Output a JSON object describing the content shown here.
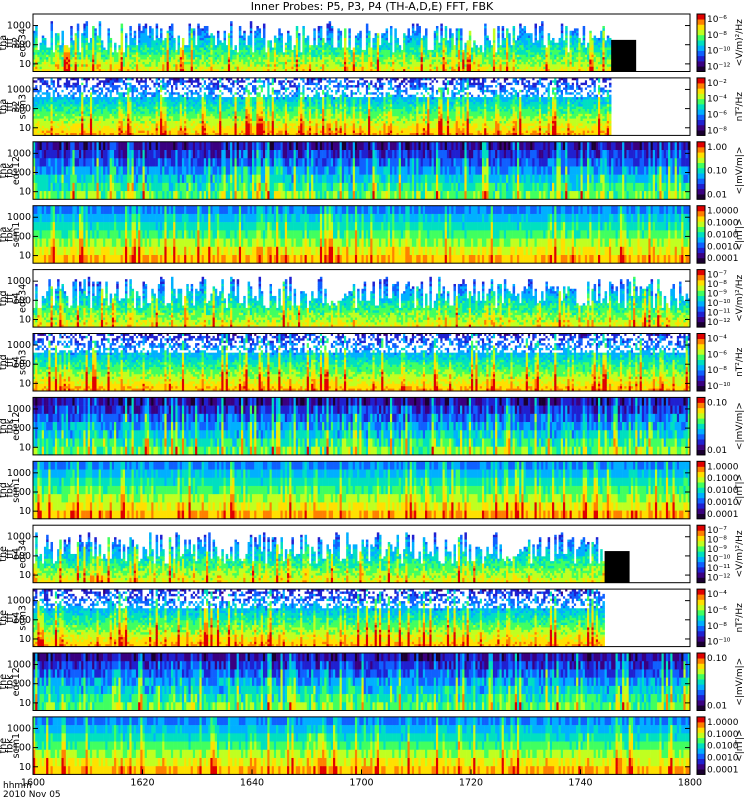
{
  "chart_data": {
    "type": "heatmap",
    "title": "Inner Probes: P5, P3, P4 (TH-A,D,E) FFT, FBK",
    "x_axis": {
      "tick_labels": [
        "1600",
        "1620",
        "1640",
        "1700",
        "1720",
        "1740",
        "1800"
      ],
      "start_label": "hhmm",
      "date_label": "2010 Nov 05"
    },
    "panels": [
      {
        "ylabel": [
          "tha",
          "fff",
          "32",
          "edc34"
        ],
        "yticks": [
          "10",
          "100",
          "1000"
        ],
        "cbar_label": "<V/m)²/Hz",
        "cbar_ticks": [
          "10⁻⁶",
          "10⁻⁸",
          "10⁻¹⁰",
          "10⁻¹²"
        ],
        "kind": "fft_e",
        "data_end": 0.88
      },
      {
        "ylabel": [
          "tha",
          "fff",
          "32",
          "scm3"
        ],
        "yticks": [
          "10",
          "100",
          "1000"
        ],
        "cbar_label": "nT²/Hz",
        "cbar_ticks": [
          "10⁻²",
          "10⁻⁴",
          "10⁻⁶",
          "10⁻⁸"
        ],
        "kind": "fft_b",
        "data_end": 0.88
      },
      {
        "ylabel": [
          "tha",
          "fbk",
          "edc12"
        ],
        "yticks": [
          "10",
          "100",
          "1000"
        ],
        "cbar_label": "<|mV/m|>",
        "cbar_ticks": [
          "1.00",
          "0.10",
          "0.01"
        ],
        "kind": "fbk_e",
        "data_end": 1.0
      },
      {
        "ylabel": [
          "tha",
          "fbk",
          "scm1"
        ],
        "yticks": [
          "10",
          "100",
          "1000"
        ],
        "cbar_label": "<|nT|>",
        "cbar_ticks": [
          "1.0000",
          "0.1000",
          "0.0100",
          "0.0010",
          "0.0001"
        ],
        "kind": "fbk_b",
        "data_end": 1.0
      },
      {
        "ylabel": [
          "thd",
          "fff",
          "64",
          "edc34"
        ],
        "yticks": [
          "10",
          "100",
          "1000"
        ],
        "cbar_label": "<V/m)²/Hz",
        "cbar_ticks": [
          "10⁻⁷",
          "10⁻⁸",
          "10⁻⁹",
          "10⁻¹⁰",
          "10⁻¹¹",
          "10⁻¹²"
        ],
        "kind": "fft_e",
        "data_end": 1.0
      },
      {
        "ylabel": [
          "thd",
          "fff",
          "64",
          "scm3"
        ],
        "yticks": [
          "10",
          "100",
          "1000"
        ],
        "cbar_label": "nT²/Hz",
        "cbar_ticks": [
          "10⁻⁴",
          "10⁻⁶",
          "10⁻⁸",
          "10⁻¹⁰"
        ],
        "kind": "fft_b",
        "data_end": 1.0
      },
      {
        "ylabel": [
          "thd",
          "fbk",
          "edc12"
        ],
        "yticks": [
          "10",
          "100",
          "1000"
        ],
        "cbar_label": "<|mV/m|>",
        "cbar_ticks": [
          "0.10",
          "0.01"
        ],
        "kind": "fbk_e",
        "data_end": 1.0
      },
      {
        "ylabel": [
          "thd",
          "fbk",
          "scm1"
        ],
        "yticks": [
          "10",
          "100",
          "1000"
        ],
        "cbar_label": "<|nT|>",
        "cbar_ticks": [
          "1.0000",
          "0.1000",
          "0.0100",
          "0.0010",
          "0.0001"
        ],
        "kind": "fbk_b",
        "data_end": 1.0
      },
      {
        "ylabel": [
          "the",
          "fff",
          "64",
          "edc34"
        ],
        "yticks": [
          "10",
          "100",
          "1000"
        ],
        "cbar_label": "<V/m)²/Hz",
        "cbar_ticks": [
          "10⁻⁷",
          "10⁻⁸",
          "10⁻⁹",
          "10⁻¹⁰",
          "10⁻¹¹",
          "10⁻¹²"
        ],
        "kind": "fft_e",
        "data_end": 0.87
      },
      {
        "ylabel": [
          "the",
          "fff",
          "64",
          "scm3"
        ],
        "yticks": [
          "10",
          "100",
          "1000"
        ],
        "cbar_label": "nT²/Hz",
        "cbar_ticks": [
          "10⁻⁴",
          "10⁻⁶",
          "10⁻⁸",
          "10⁻¹⁰"
        ],
        "kind": "fft_b",
        "data_end": 0.87
      },
      {
        "ylabel": [
          "the",
          "fbk",
          "edc12"
        ],
        "yticks": [
          "10",
          "100",
          "1000"
        ],
        "cbar_label": "<|mV/m|>",
        "cbar_ticks": [
          "0.10",
          "0.01"
        ],
        "kind": "fbk_e",
        "data_end": 1.0
      },
      {
        "ylabel": [
          "the",
          "fbk",
          "scm1"
        ],
        "yticks": [
          "10",
          "100",
          "1000"
        ],
        "cbar_label": "<|nT|>",
        "cbar_ticks": [
          "1.0000",
          "0.1000",
          "0.0100",
          "0.0010",
          "0.0001"
        ],
        "kind": "fbk_b",
        "data_end": 1.0
      }
    ],
    "colormap": [
      "#1a0030",
      "#3a0080",
      "#2020d0",
      "#1060ff",
      "#00b0ff",
      "#00e0c0",
      "#40ff60",
      "#c0ff20",
      "#ffe000",
      "#ff8000",
      "#e00000"
    ]
  }
}
